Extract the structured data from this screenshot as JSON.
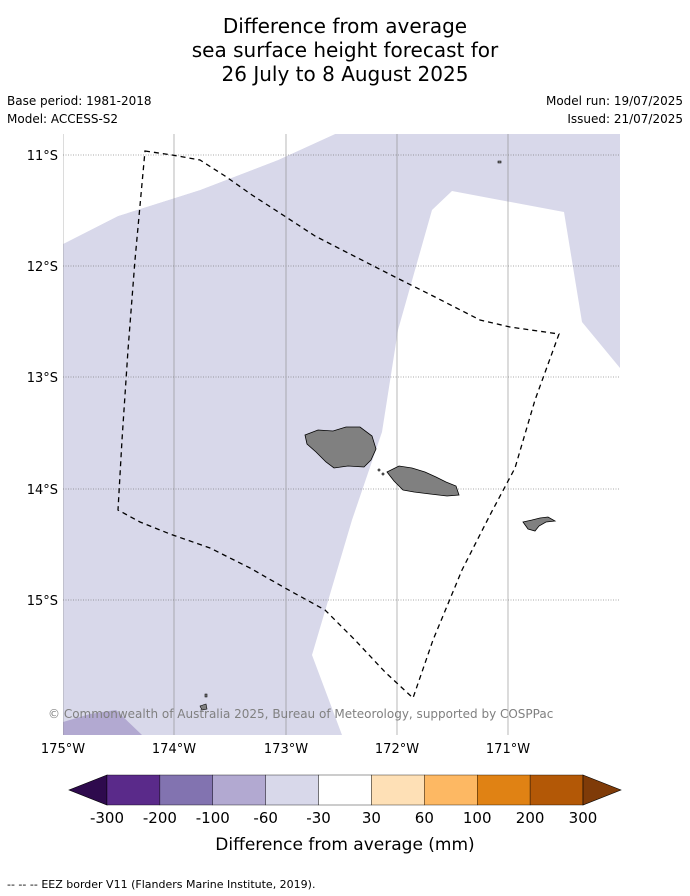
{
  "title": {
    "line1": "Difference from average",
    "line2": "sea surface height forecast for",
    "line3": "26 July to 8 August 2025"
  },
  "meta": {
    "base_period": "Base period: 1981-2018",
    "model": "Model: ACCESS-S2",
    "model_run": "Model run: 19/07/2025",
    "issued": "Issued: 21/07/2025"
  },
  "map": {
    "lon_labels": [
      "175°W",
      "174°W",
      "173°W",
      "172°W",
      "171°W"
    ],
    "lat_labels": [
      "11°S",
      "12°S",
      "13°S",
      "14°S",
      "15°S"
    ],
    "copyright": "© Commonwealth of Australia 2025, Bureau of Meteorology, supported by COSPPac",
    "colors": {
      "ocean_light_purple": "#d8d8ea",
      "ocean_mid_purple": "#b2a9d1",
      "land": "#808080"
    }
  },
  "colorbar": {
    "label": "Difference from average (mm)",
    "ticks": [
      "-300",
      "-200",
      "-100",
      "-60",
      "-30",
      "30",
      "60",
      "100",
      "200",
      "300"
    ],
    "colors": [
      "#2e0a4d",
      "#5a2a8a",
      "#8273b0",
      "#b2a9d1",
      "#d8d8ea",
      "#ffffff",
      "#fee0b6",
      "#fdb863",
      "#e08214",
      "#b35806",
      "#7f3b08"
    ]
  },
  "footer": {
    "legend_symbol": "--  --  --",
    "legend_text": "EEZ border V11 (Flanders Marine Institute, 2019)."
  }
}
